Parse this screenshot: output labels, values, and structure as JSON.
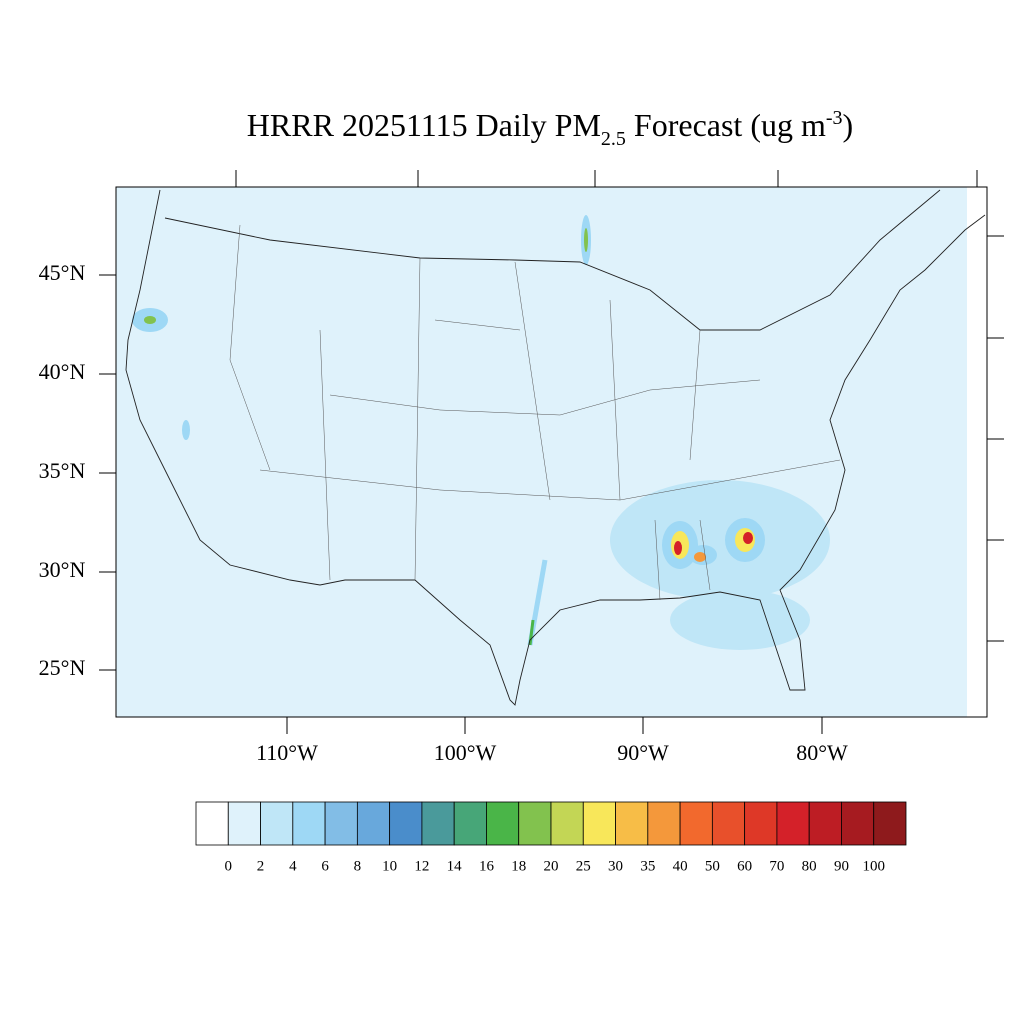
{
  "title": {
    "main": "HRRR 20251115 Daily PM",
    "sub": "2.5",
    "rest": "Forecast (ug m",
    "sup": "-3",
    "close": ")"
  },
  "map": {
    "lat_labels": [
      "45°N",
      "40°N",
      "35°N",
      "30°N",
      "25°N"
    ],
    "lon_labels": [
      "110°W",
      "100°W",
      "90°W",
      "80°W"
    ]
  },
  "colorbar": {
    "levels": [
      0,
      2,
      4,
      6,
      8,
      10,
      12,
      14,
      16,
      18,
      20,
      25,
      30,
      35,
      40,
      50,
      60,
      70,
      80,
      90,
      100
    ],
    "colors": [
      "#ffffff",
      "#dff2fb",
      "#bfe6f7",
      "#9ed8f5",
      "#82bde6",
      "#68a8dc",
      "#4a8dcb",
      "#4a9a9b",
      "#47a678",
      "#4ab548",
      "#82c24e",
      "#c3d655",
      "#f8e75a",
      "#f7bd47",
      "#f4983b",
      "#f2692d",
      "#e8502b",
      "#de3827",
      "#d42129",
      "#bd1d24",
      "#a61b20",
      "#8e1a1c"
    ]
  }
}
